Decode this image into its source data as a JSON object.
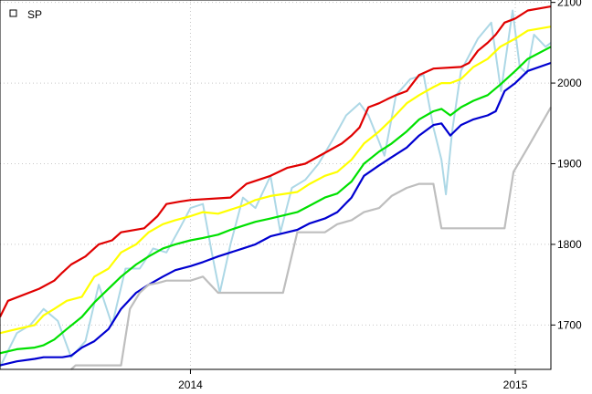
{
  "chart_data": {
    "type": "line",
    "legend": {
      "label": "SP",
      "position": "top-left"
    },
    "grid": true,
    "xlim": [
      "2013-06-01",
      "2015-02-10"
    ],
    "ylim": [
      1645,
      2103
    ],
    "x_ticks": [
      {
        "date": "2014-01-01",
        "label": "2014"
      },
      {
        "date": "2015-01-01",
        "label": "2015"
      }
    ],
    "y_ticks": [
      {
        "value": 1700,
        "label": "1700"
      },
      {
        "value": 1800,
        "label": "1800"
      },
      {
        "value": 1900,
        "label": "1900"
      },
      {
        "value": 2000,
        "label": "2000"
      },
      {
        "value": 2100,
        "label": "2100"
      }
    ],
    "series": [
      {
        "color": "#ADD8E6",
        "points": [
          [
            "2013-06-01",
            1648
          ],
          [
            "2013-06-20",
            1690
          ],
          [
            "2013-07-05",
            1700
          ],
          [
            "2013-07-20",
            1720
          ],
          [
            "2013-08-05",
            1705
          ],
          [
            "2013-08-20",
            1660
          ],
          [
            "2013-09-05",
            1680
          ],
          [
            "2013-09-20",
            1750
          ],
          [
            "2013-10-05",
            1700
          ],
          [
            "2013-10-20",
            1770
          ],
          [
            "2013-11-05",
            1770
          ],
          [
            "2013-11-20",
            1795
          ],
          [
            "2013-12-05",
            1790
          ],
          [
            "2013-12-20",
            1820
          ],
          [
            "2014-01-01",
            1845
          ],
          [
            "2014-01-15",
            1850
          ],
          [
            "2014-01-25",
            1790
          ],
          [
            "2014-02-03",
            1740
          ],
          [
            "2014-02-15",
            1800
          ],
          [
            "2014-03-01",
            1858
          ],
          [
            "2014-03-15",
            1845
          ],
          [
            "2014-04-01",
            1885
          ],
          [
            "2014-04-12",
            1815
          ],
          [
            "2014-04-25",
            1870
          ],
          [
            "2014-05-10",
            1880
          ],
          [
            "2014-05-25",
            1900
          ],
          [
            "2014-06-10",
            1930
          ],
          [
            "2014-06-25",
            1960
          ],
          [
            "2014-07-10",
            1975
          ],
          [
            "2014-07-20",
            1960
          ],
          [
            "2014-07-31",
            1930
          ],
          [
            "2014-08-07",
            1910
          ],
          [
            "2014-08-20",
            1985
          ],
          [
            "2014-09-05",
            2005
          ],
          [
            "2014-09-20",
            2010
          ],
          [
            "2014-10-01",
            1945
          ],
          [
            "2014-10-10",
            1905
          ],
          [
            "2014-10-15",
            1862
          ],
          [
            "2014-10-22",
            1940
          ],
          [
            "2014-11-01",
            2015
          ],
          [
            "2014-11-20",
            2055
          ],
          [
            "2014-12-05",
            2075
          ],
          [
            "2014-12-16",
            1990
          ],
          [
            "2014-12-29",
            2090
          ],
          [
            "2015-01-06",
            2020
          ],
          [
            "2015-01-14",
            2012
          ],
          [
            "2015-01-22",
            2060
          ],
          [
            "2015-02-04",
            2045
          ],
          [
            "2015-02-10",
            2050
          ]
        ]
      },
      {
        "color": "#E00000",
        "points": [
          [
            "2013-06-01",
            1710
          ],
          [
            "2013-06-10",
            1730
          ],
          [
            "2013-07-15",
            1745
          ],
          [
            "2013-08-01",
            1755
          ],
          [
            "2013-08-10",
            1765
          ],
          [
            "2013-08-20",
            1775
          ],
          [
            "2013-09-05",
            1785
          ],
          [
            "2013-09-20",
            1800
          ],
          [
            "2013-10-05",
            1805
          ],
          [
            "2013-10-15",
            1815
          ],
          [
            "2013-11-10",
            1820
          ],
          [
            "2013-11-25",
            1835
          ],
          [
            "2013-12-05",
            1850
          ],
          [
            "2013-12-20",
            1853
          ],
          [
            "2014-01-01",
            1855
          ],
          [
            "2014-02-15",
            1858
          ],
          [
            "2014-03-05",
            1875
          ],
          [
            "2014-04-01",
            1885
          ],
          [
            "2014-04-20",
            1895
          ],
          [
            "2014-05-10",
            1900
          ],
          [
            "2014-06-20",
            1925
          ],
          [
            "2014-07-01",
            1935
          ],
          [
            "2014-07-10",
            1945
          ],
          [
            "2014-07-20",
            1970
          ],
          [
            "2014-08-01",
            1975
          ],
          [
            "2014-08-10",
            1980
          ],
          [
            "2014-08-20",
            1985
          ],
          [
            "2014-09-01",
            1990
          ],
          [
            "2014-09-15",
            2010
          ],
          [
            "2014-10-01",
            2018
          ],
          [
            "2014-11-01",
            2020
          ],
          [
            "2014-11-10",
            2025
          ],
          [
            "2014-11-20",
            2040
          ],
          [
            "2014-12-01",
            2050
          ],
          [
            "2014-12-10",
            2060
          ],
          [
            "2014-12-20",
            2075
          ],
          [
            "2015-01-01",
            2080
          ],
          [
            "2015-01-15",
            2090
          ],
          [
            "2015-02-10",
            2095
          ]
        ]
      },
      {
        "color": "#FFFF00",
        "points": [
          [
            "2013-06-01",
            1690
          ],
          [
            "2013-06-20",
            1695
          ],
          [
            "2013-07-10",
            1700
          ],
          [
            "2013-07-20",
            1712
          ],
          [
            "2013-08-01",
            1720
          ],
          [
            "2013-08-15",
            1730
          ],
          [
            "2013-09-01",
            1735
          ],
          [
            "2013-09-15",
            1760
          ],
          [
            "2013-10-01",
            1770
          ],
          [
            "2013-10-15",
            1790
          ],
          [
            "2013-11-01",
            1800
          ],
          [
            "2013-11-15",
            1815
          ],
          [
            "2013-12-01",
            1825
          ],
          [
            "2013-12-15",
            1830
          ],
          [
            "2014-01-01",
            1835
          ],
          [
            "2014-01-15",
            1840
          ],
          [
            "2014-02-01",
            1838
          ],
          [
            "2014-02-15",
            1843
          ],
          [
            "2014-03-01",
            1848
          ],
          [
            "2014-03-15",
            1855
          ],
          [
            "2014-04-01",
            1860
          ],
          [
            "2014-05-01",
            1865
          ],
          [
            "2014-05-15",
            1875
          ],
          [
            "2014-06-01",
            1885
          ],
          [
            "2014-06-15",
            1890
          ],
          [
            "2014-07-01",
            1905
          ],
          [
            "2014-07-15",
            1925
          ],
          [
            "2014-08-01",
            1940
          ],
          [
            "2014-08-15",
            1955
          ],
          [
            "2014-09-01",
            1975
          ],
          [
            "2014-09-15",
            1985
          ],
          [
            "2014-10-01",
            1995
          ],
          [
            "2014-10-10",
            2000
          ],
          [
            "2014-10-20",
            2000
          ],
          [
            "2014-11-01",
            2005
          ],
          [
            "2014-11-15",
            2020
          ],
          [
            "2014-12-01",
            2030
          ],
          [
            "2014-12-15",
            2045
          ],
          [
            "2015-01-01",
            2055
          ],
          [
            "2015-01-15",
            2065
          ],
          [
            "2015-02-10",
            2070
          ]
        ]
      },
      {
        "color": "#00E000",
        "points": [
          [
            "2013-06-01",
            1665
          ],
          [
            "2013-06-20",
            1670
          ],
          [
            "2013-07-10",
            1672
          ],
          [
            "2013-07-20",
            1675
          ],
          [
            "2013-08-01",
            1682
          ],
          [
            "2013-08-15",
            1695
          ],
          [
            "2013-09-01",
            1710
          ],
          [
            "2013-09-15",
            1728
          ],
          [
            "2013-10-01",
            1745
          ],
          [
            "2013-10-15",
            1760
          ],
          [
            "2013-11-01",
            1775
          ],
          [
            "2013-11-15",
            1785
          ],
          [
            "2013-12-01",
            1795
          ],
          [
            "2013-12-15",
            1800
          ],
          [
            "2014-01-01",
            1805
          ],
          [
            "2014-01-15",
            1808
          ],
          [
            "2014-02-01",
            1812
          ],
          [
            "2014-02-15",
            1818
          ],
          [
            "2014-03-01",
            1823
          ],
          [
            "2014-03-15",
            1828
          ],
          [
            "2014-04-01",
            1832
          ],
          [
            "2014-05-01",
            1840
          ],
          [
            "2014-05-15",
            1848
          ],
          [
            "2014-06-01",
            1858
          ],
          [
            "2014-06-15",
            1863
          ],
          [
            "2014-07-01",
            1878
          ],
          [
            "2014-07-15",
            1900
          ],
          [
            "2014-08-01",
            1915
          ],
          [
            "2014-08-15",
            1925
          ],
          [
            "2014-09-01",
            1940
          ],
          [
            "2014-09-15",
            1955
          ],
          [
            "2014-10-01",
            1965
          ],
          [
            "2014-10-10",
            1968
          ],
          [
            "2014-10-20",
            1960
          ],
          [
            "2014-11-01",
            1970
          ],
          [
            "2014-11-15",
            1978
          ],
          [
            "2014-12-01",
            1985
          ],
          [
            "2014-12-15",
            1998
          ],
          [
            "2015-01-01",
            2015
          ],
          [
            "2015-01-15",
            2030
          ],
          [
            "2015-02-10",
            2045
          ]
        ]
      },
      {
        "color": "#0000D0",
        "points": [
          [
            "2013-06-01",
            1650
          ],
          [
            "2013-06-20",
            1655
          ],
          [
            "2013-07-10",
            1658
          ],
          [
            "2013-07-20",
            1660
          ],
          [
            "2013-08-10",
            1660
          ],
          [
            "2013-08-20",
            1662
          ],
          [
            "2013-09-01",
            1672
          ],
          [
            "2013-09-15",
            1680
          ],
          [
            "2013-10-01",
            1695
          ],
          [
            "2013-10-15",
            1720
          ],
          [
            "2013-11-01",
            1740
          ],
          [
            "2013-11-15",
            1750
          ],
          [
            "2013-12-01",
            1760
          ],
          [
            "2013-12-15",
            1768
          ],
          [
            "2014-01-01",
            1773
          ],
          [
            "2014-01-15",
            1778
          ],
          [
            "2014-02-01",
            1785
          ],
          [
            "2014-02-15",
            1790
          ],
          [
            "2014-03-01",
            1795
          ],
          [
            "2014-03-15",
            1800
          ],
          [
            "2014-04-01",
            1810
          ],
          [
            "2014-05-01",
            1818
          ],
          [
            "2014-05-15",
            1826
          ],
          [
            "2014-06-01",
            1832
          ],
          [
            "2014-06-15",
            1840
          ],
          [
            "2014-07-01",
            1858
          ],
          [
            "2014-07-15",
            1885
          ],
          [
            "2014-08-01",
            1898
          ],
          [
            "2014-08-15",
            1908
          ],
          [
            "2014-09-01",
            1920
          ],
          [
            "2014-09-15",
            1935
          ],
          [
            "2014-10-01",
            1948
          ],
          [
            "2014-10-10",
            1950
          ],
          [
            "2014-10-20",
            1935
          ],
          [
            "2014-11-01",
            1948
          ],
          [
            "2014-11-15",
            1955
          ],
          [
            "2014-12-01",
            1960
          ],
          [
            "2014-12-10",
            1965
          ],
          [
            "2014-12-20",
            1990
          ],
          [
            "2015-01-01",
            2000
          ],
          [
            "2015-01-15",
            2015
          ],
          [
            "2015-02-10",
            2025
          ]
        ]
      },
      {
        "color": "#BEBEBE",
        "points": [
          [
            "2013-08-20",
            1645
          ],
          [
            "2013-08-25",
            1650
          ],
          [
            "2013-10-15",
            1650
          ],
          [
            "2013-10-25",
            1720
          ],
          [
            "2013-11-05",
            1740
          ],
          [
            "2013-11-15",
            1750
          ],
          [
            "2013-11-25",
            1752
          ],
          [
            "2013-12-05",
            1755
          ],
          [
            "2014-01-01",
            1755
          ],
          [
            "2014-01-15",
            1760
          ],
          [
            "2014-02-01",
            1740
          ],
          [
            "2014-04-15",
            1740
          ],
          [
            "2014-05-01",
            1815
          ],
          [
            "2014-06-01",
            1815
          ],
          [
            "2014-06-15",
            1825
          ],
          [
            "2014-07-01",
            1830
          ],
          [
            "2014-07-15",
            1840
          ],
          [
            "2014-08-01",
            1845
          ],
          [
            "2014-08-15",
            1860
          ],
          [
            "2014-09-01",
            1870
          ],
          [
            "2014-09-15",
            1875
          ],
          [
            "2014-10-01",
            1875
          ],
          [
            "2014-10-10",
            1820
          ],
          [
            "2014-12-20",
            1820
          ],
          [
            "2014-12-30",
            1890
          ],
          [
            "2015-01-15",
            1920
          ],
          [
            "2015-02-10",
            1970
          ]
        ]
      }
    ]
  }
}
